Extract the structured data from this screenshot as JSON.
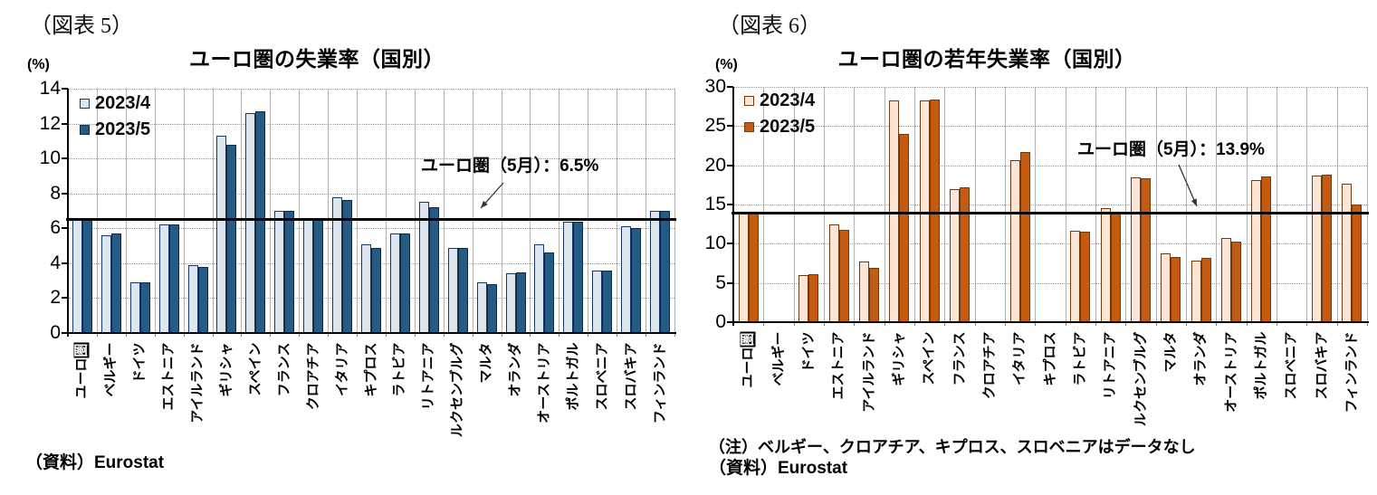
{
  "chart_data": [
    {
      "type": "bar",
      "figure_label": "（図表 5）",
      "title": "ユーロ圏の失業率（国別）",
      "unit_label": "(%)",
      "legend": [
        "2023/4",
        "2023/5"
      ],
      "legend_position": "top-left",
      "annotation": "ユーロ圏（5月）：6.5%",
      "reference_line_value": 6.5,
      "source": "（資料）Eurostat",
      "categories": [
        "ユーロ圏",
        "ベルギー",
        "ドイツ",
        "エストニア",
        "アイルランド",
        "ギリシャ",
        "スペイン",
        "フランス",
        "クロアチア",
        "イタリア",
        "キプロス",
        "ラトビア",
        "リトアニア",
        "ルクセンブルグ",
        "マルタ",
        "オランダ",
        "オーストリア",
        "ポルトガル",
        "スロベニア",
        "スロバキア",
        "フィンランド"
      ],
      "series": [
        {
          "name": "2023/4",
          "values": [
            6.5,
            5.6,
            2.9,
            6.2,
            3.9,
            11.3,
            12.6,
            7.0,
            6.5,
            7.8,
            5.1,
            5.7,
            7.5,
            4.9,
            2.9,
            3.4,
            5.1,
            6.4,
            3.6,
            6.1,
            7.0
          ]
        },
        {
          "name": "2023/5",
          "values": [
            6.5,
            5.7,
            2.9,
            6.2,
            3.8,
            10.8,
            12.7,
            7.0,
            6.5,
            7.6,
            4.9,
            5.7,
            7.2,
            4.9,
            2.8,
            3.5,
            4.6,
            6.4,
            3.6,
            6.0,
            7.0
          ]
        }
      ],
      "ylim": [
        0,
        14
      ],
      "yticks": [
        14,
        12,
        10,
        8,
        6,
        4,
        2,
        0
      ],
      "grid": true,
      "colors": {
        "series1_fill": "#dce6f1",
        "series1_border": "#17375e",
        "series2_fill": "#255a84",
        "series2_border": "#12293f",
        "reference_line": "#000000"
      }
    },
    {
      "type": "bar",
      "figure_label": "（図表 6）",
      "title": "ユーロ圏の若年失業率（国別）",
      "unit_label": "(%)",
      "legend": [
        "2023/4",
        "2023/5"
      ],
      "legend_position": "top-left",
      "annotation": "ユーロ圏（5月）：13.9%",
      "reference_line_value": 13.9,
      "note": "（注）ベルギー、クロアチア、キプロス、スロベニアはデータなし",
      "source": "（資料）Eurostat",
      "categories": [
        "ユーロ圏",
        "ベルギー",
        "ドイツ",
        "エストニア",
        "アイルランド",
        "ギリシャ",
        "スペイン",
        "フランス",
        "クロアチア",
        "イタリア",
        "キプロス",
        "ラトビア",
        "リトアニア",
        "ルクセンブルグ",
        "マルタ",
        "オランダ",
        "オーストリア",
        "ポルトガル",
        "スロベニア",
        "スロバキア",
        "フィンランド"
      ],
      "series": [
        {
          "name": "2023/4",
          "values": [
            13.9,
            null,
            6.0,
            12.5,
            7.7,
            28.3,
            28.3,
            17.0,
            null,
            20.7,
            null,
            11.7,
            14.5,
            18.5,
            8.8,
            7.9,
            10.7,
            18.1,
            null,
            18.7,
            17.6
          ]
        },
        {
          "name": "2023/5",
          "values": [
            13.9,
            null,
            6.1,
            11.8,
            6.9,
            24.0,
            28.4,
            17.2,
            null,
            21.7,
            null,
            11.5,
            13.9,
            18.4,
            8.3,
            8.2,
            10.3,
            18.6,
            null,
            18.8,
            15.0
          ]
        }
      ],
      "ylim": [
        0,
        30
      ],
      "yticks": [
        30,
        25,
        20,
        15,
        10,
        5,
        0
      ],
      "grid": true,
      "colors": {
        "series1_fill": "#fbe5d6",
        "series1_border": "#6f3a10",
        "series2_fill": "#c55a11",
        "series2_border": "#6f3a10",
        "reference_line": "#000000"
      }
    }
  ]
}
